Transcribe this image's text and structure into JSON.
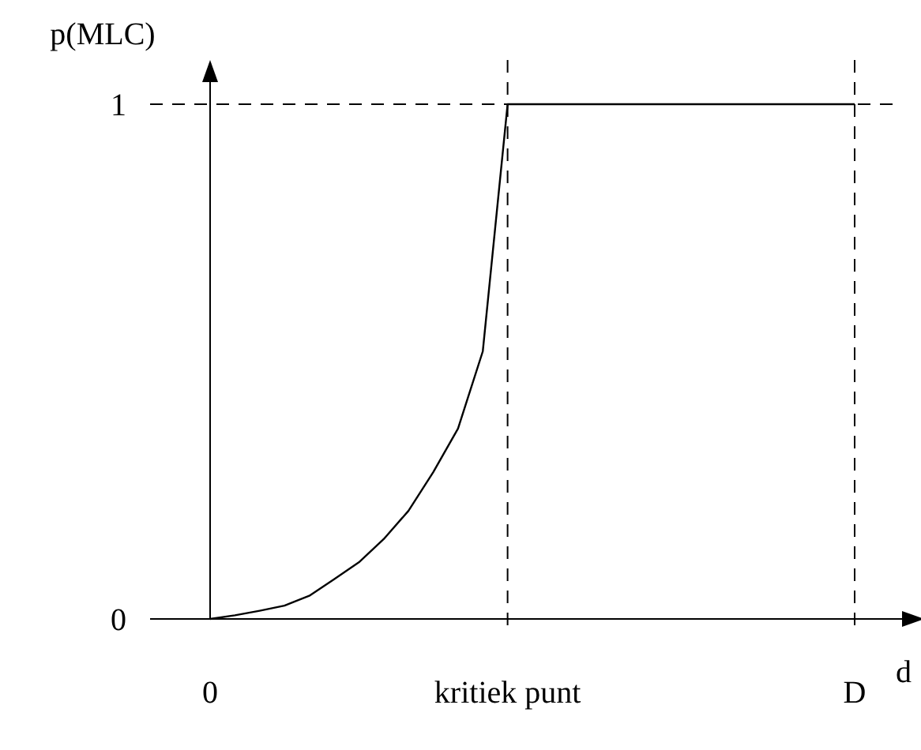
{
  "chart_data": {
    "type": "line",
    "xlabel": "d",
    "ylabel": "p(MLC)",
    "categories": [
      "0",
      null,
      null,
      null,
      null,
      null,
      null,
      null,
      null,
      null,
      null,
      null,
      "kritiek punt",
      null,
      null,
      null,
      null,
      null,
      null,
      null,
      null,
      null,
      null,
      null,
      null,
      null,
      "D"
    ],
    "ylim": [
      0,
      1.086
    ],
    "yticks": [
      0,
      1
    ],
    "series": [
      {
        "color": "#000000",
        "values": [
          0,
          0.007,
          0.016,
          0.026,
          0.045,
          0.077,
          0.11,
          0.155,
          0.21,
          0.285,
          0.37,
          0.52,
          1,
          1,
          1,
          1,
          1,
          1,
          1,
          1,
          1,
          1,
          1,
          1,
          1,
          1,
          1
        ]
      }
    ],
    "ref_lines": [
      {
        "axis": "x",
        "value": "kritiek punt",
        "line_style": "dashed",
        "color": "#000000"
      },
      {
        "axis": "x",
        "value": "D",
        "line_style": "dashed",
        "color": "#000000"
      },
      {
        "axis": "y",
        "value": 1,
        "line_style": "dashed",
        "color": "#000000"
      }
    ],
    "grid": false,
    "marker": "none",
    "line_style": "solid"
  }
}
